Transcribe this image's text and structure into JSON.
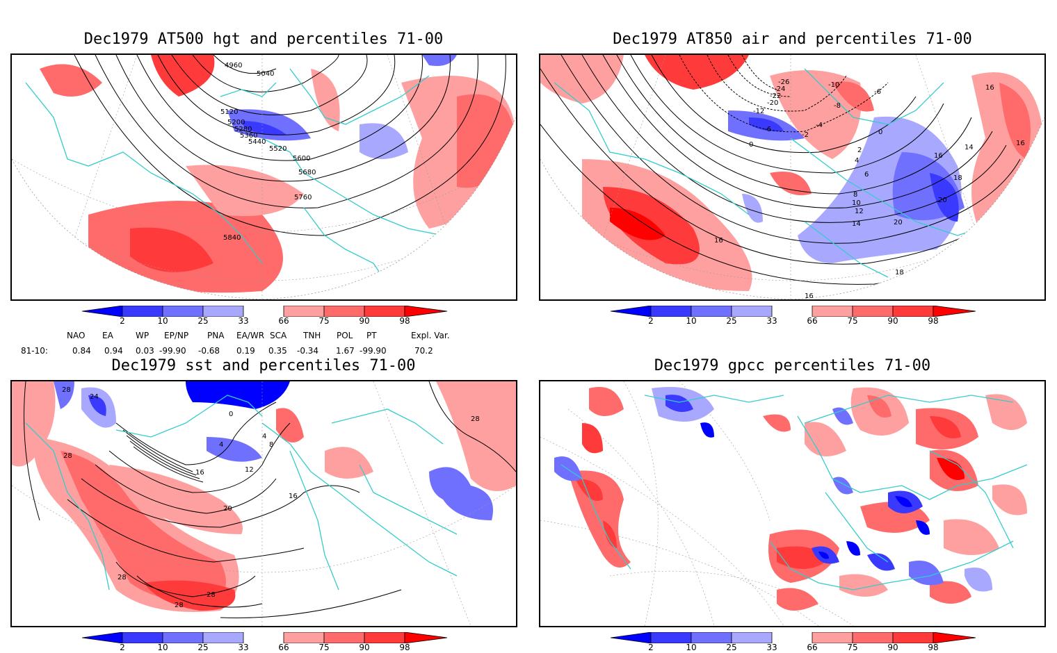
{
  "colors": {
    "blue_extreme": "#0000ff",
    "blue_dark": "#3a3aff",
    "blue_mid": "#7070ff",
    "blue_light": "#a8a8ff",
    "red_light": "#ffa0a0",
    "red_mid": "#ff6a6a",
    "red_dark": "#ff3a3a",
    "red_extreme": "#ff0000",
    "coast": "#33cccc"
  },
  "colorbar": {
    "tick_labels": [
      "2",
      "10",
      "25",
      "33",
      "66",
      "75",
      "90",
      "98"
    ]
  },
  "panels": [
    {
      "id": "hgt500",
      "title": "Dec1979 AT500 hgt and percentiles 71-00",
      "contour_labels": [
        "4960",
        "5040",
        "5120",
        "5200",
        "5280",
        "5360",
        "5440",
        "5520",
        "5600",
        "5680",
        "5760",
        "5840"
      ]
    },
    {
      "id": "air850",
      "title": "Dec1979 AT850 air and percentiles 71-00",
      "contour_labels": [
        "-26",
        "-24",
        "-22",
        "-20",
        "-12",
        "-10",
        "-8",
        "-6",
        "-6",
        "-4",
        "-2",
        "0",
        "0",
        "2",
        "4",
        "6",
        "8",
        "10",
        "12",
        "14",
        "14",
        "16",
        "16",
        "16",
        "16",
        "16",
        "18",
        "18",
        "20",
        "20"
      ]
    },
    {
      "id": "sst",
      "title": "Dec1979 sst and percentiles 71-00",
      "contour_labels": [
        "24",
        "28",
        "28",
        "0",
        "4",
        "4",
        "8",
        "12",
        "16",
        "16",
        "20",
        "28",
        "28",
        "28",
        "28"
      ]
    },
    {
      "id": "gpcc",
      "title": "Dec1979 gpcc percentiles 71-00",
      "contour_labels": []
    }
  ],
  "teleconnections": {
    "headers": [
      "NAO",
      "EA",
      "WP",
      "EP/NP",
      "PNA",
      "EA/WR",
      "SCA",
      "TNH",
      "POL",
      "PT",
      "Expl. Var."
    ],
    "row_label": "81-10:",
    "values": [
      "0.84",
      "0.94",
      "0.03",
      "-99.90",
      "-0.68",
      "0.19",
      "0.35",
      "-0.34",
      "1.67",
      "-99.90",
      "70.2"
    ]
  }
}
